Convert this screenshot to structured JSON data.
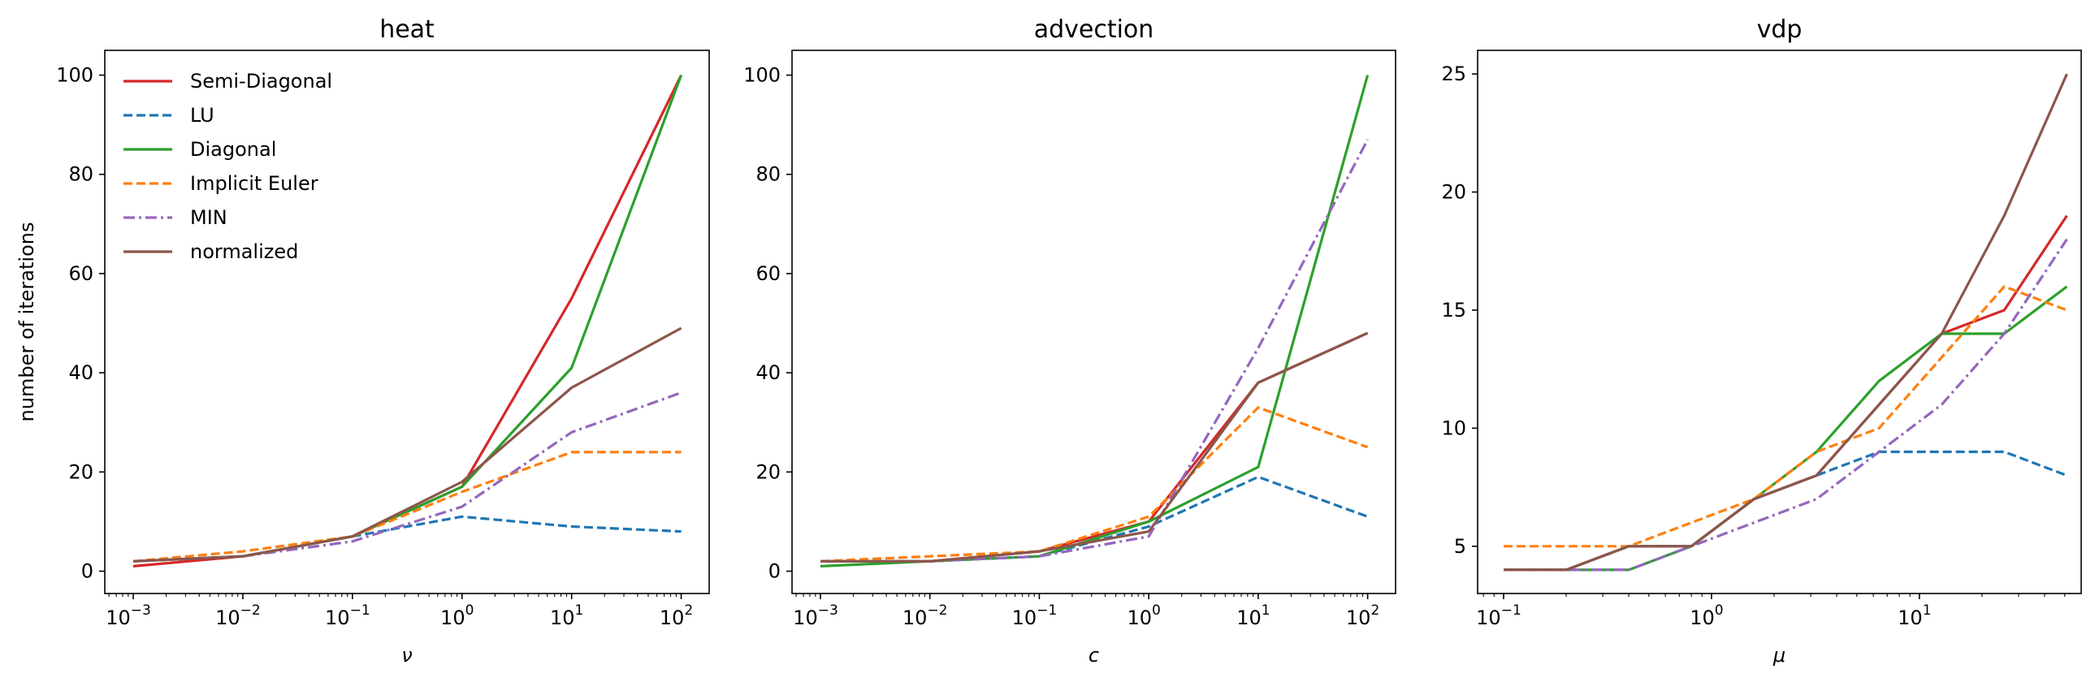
{
  "colors": {
    "Semi-Diagonal": "#d62728",
    "LU": "#1f77b4",
    "Diagonal": "#2ca02c",
    "Implicit Euler": "#ff7f0e",
    "MIN": "#9467bd",
    "normalized": "#8c564b"
  },
  "legend": {
    "placement": "upper-left",
    "entries": [
      "Semi-Diagonal",
      "LU",
      "Diagonal",
      "Implicit Euler",
      "MIN",
      "normalized"
    ]
  },
  "chart_data": [
    {
      "type": "line",
      "title": "heat",
      "xlabel": "ν",
      "ylabel": "number of iterations",
      "xscale": "log",
      "xlim": [
        0.00055,
        180
      ],
      "ylim": [
        -4.5,
        105
      ],
      "xticks": [
        {
          "value": 0.001,
          "base": "10",
          "exp": "−3"
        },
        {
          "value": 0.01,
          "base": "10",
          "exp": "−2"
        },
        {
          "value": 0.1,
          "base": "10",
          "exp": "−1"
        },
        {
          "value": 1,
          "base": "10",
          "exp": "0"
        },
        {
          "value": 10,
          "base": "10",
          "exp": "1"
        },
        {
          "value": 100,
          "base": "10",
          "exp": "2"
        }
      ],
      "yticks": [
        0,
        20,
        40,
        60,
        80,
        100
      ],
      "x": [
        0.001,
        0.01,
        0.1,
        1,
        10,
        100
      ],
      "series": [
        {
          "name": "Semi-Diagonal",
          "dash": "solid",
          "values": [
            1,
            3,
            7,
            17,
            55,
            100
          ]
        },
        {
          "name": "LU",
          "dash": "dashed",
          "values": [
            2,
            3,
            7,
            11,
            9,
            8
          ]
        },
        {
          "name": "Diagonal",
          "dash": "solid",
          "values": [
            2,
            3,
            7,
            17,
            41,
            100
          ]
        },
        {
          "name": "Implicit Euler",
          "dash": "dashed",
          "values": [
            2,
            4,
            7,
            16,
            24,
            24
          ]
        },
        {
          "name": "MIN",
          "dash": "dashdot",
          "values": [
            2,
            3,
            6,
            13,
            28,
            36
          ]
        },
        {
          "name": "normalized",
          "dash": "solid",
          "values": [
            2,
            3,
            7,
            18,
            37,
            49
          ]
        }
      ]
    },
    {
      "type": "line",
      "title": "advection",
      "xlabel": "c",
      "ylabel": "",
      "xscale": "log",
      "xlim": [
        0.00055,
        180
      ],
      "ylim": [
        -4.5,
        105
      ],
      "xticks": [
        {
          "value": 0.001,
          "base": "10",
          "exp": "−3"
        },
        {
          "value": 0.01,
          "base": "10",
          "exp": "−2"
        },
        {
          "value": 0.1,
          "base": "10",
          "exp": "−1"
        },
        {
          "value": 1,
          "base": "10",
          "exp": "0"
        },
        {
          "value": 10,
          "base": "10",
          "exp": "1"
        },
        {
          "value": 100,
          "base": "10",
          "exp": "2"
        }
      ],
      "yticks": [
        0,
        20,
        40,
        60,
        80,
        100
      ],
      "x": [
        0.001,
        0.01,
        0.1,
        1,
        10,
        100
      ],
      "series": [
        {
          "name": "Semi-Diagonal",
          "dash": "solid",
          "values": [
            2,
            2,
            4,
            10,
            38,
            48
          ]
        },
        {
          "name": "LU",
          "dash": "dashed",
          "values": [
            2,
            2,
            3,
            9,
            19,
            11
          ]
        },
        {
          "name": "Diagonal",
          "dash": "solid",
          "values": [
            1,
            2,
            3,
            10,
            21,
            100
          ]
        },
        {
          "name": "Implicit Euler",
          "dash": "dashed",
          "values": [
            2,
            3,
            4,
            11,
            33,
            25
          ]
        },
        {
          "name": "MIN",
          "dash": "dashdot",
          "values": [
            2,
            2,
            3,
            7,
            45,
            87
          ]
        },
        {
          "name": "normalized",
          "dash": "solid",
          "values": [
            2,
            2,
            4,
            8,
            38,
            48
          ]
        }
      ]
    },
    {
      "type": "line",
      "title": "vdp",
      "xlabel": "μ",
      "ylabel": "",
      "xscale": "log",
      "xlim": [
        0.075,
        60
      ],
      "ylim": [
        3,
        26
      ],
      "xticks": [
        {
          "value": 0.1,
          "base": "10",
          "exp": "−1"
        },
        {
          "value": 1,
          "base": "10",
          "exp": "0"
        },
        {
          "value": 10,
          "base": "10",
          "exp": "1"
        }
      ],
      "yticks": [
        5,
        10,
        15,
        20,
        25
      ],
      "x": [
        0.1,
        0.2,
        0.4,
        0.8,
        1.6,
        3.2,
        6.4,
        12.8,
        25.6,
        51.2
      ],
      "series": [
        {
          "name": "Semi-Diagonal",
          "dash": "solid",
          "values": [
            4,
            4,
            5,
            5,
            7,
            8,
            11,
            14,
            15,
            19
          ]
        },
        {
          "name": "LU",
          "dash": "dashed",
          "values": [
            4,
            4,
            5,
            5,
            7,
            8,
            9,
            9,
            9,
            8
          ]
        },
        {
          "name": "Diagonal",
          "dash": "solid",
          "values": [
            4,
            4,
            4,
            5,
            7,
            9,
            12,
            14,
            14,
            16
          ]
        },
        {
          "name": "Implicit Euler",
          "dash": "dashed",
          "values": [
            5,
            5,
            5,
            6,
            7,
            9,
            10,
            13,
            16,
            15
          ]
        },
        {
          "name": "MIN",
          "dash": "dashdot",
          "values": [
            4,
            4,
            4,
            5,
            6,
            7,
            9,
            11,
            14,
            18
          ]
        },
        {
          "name": "normalized",
          "dash": "solid",
          "values": [
            4,
            4,
            5,
            5,
            7,
            8,
            11,
            14,
            19,
            25
          ]
        }
      ]
    }
  ]
}
